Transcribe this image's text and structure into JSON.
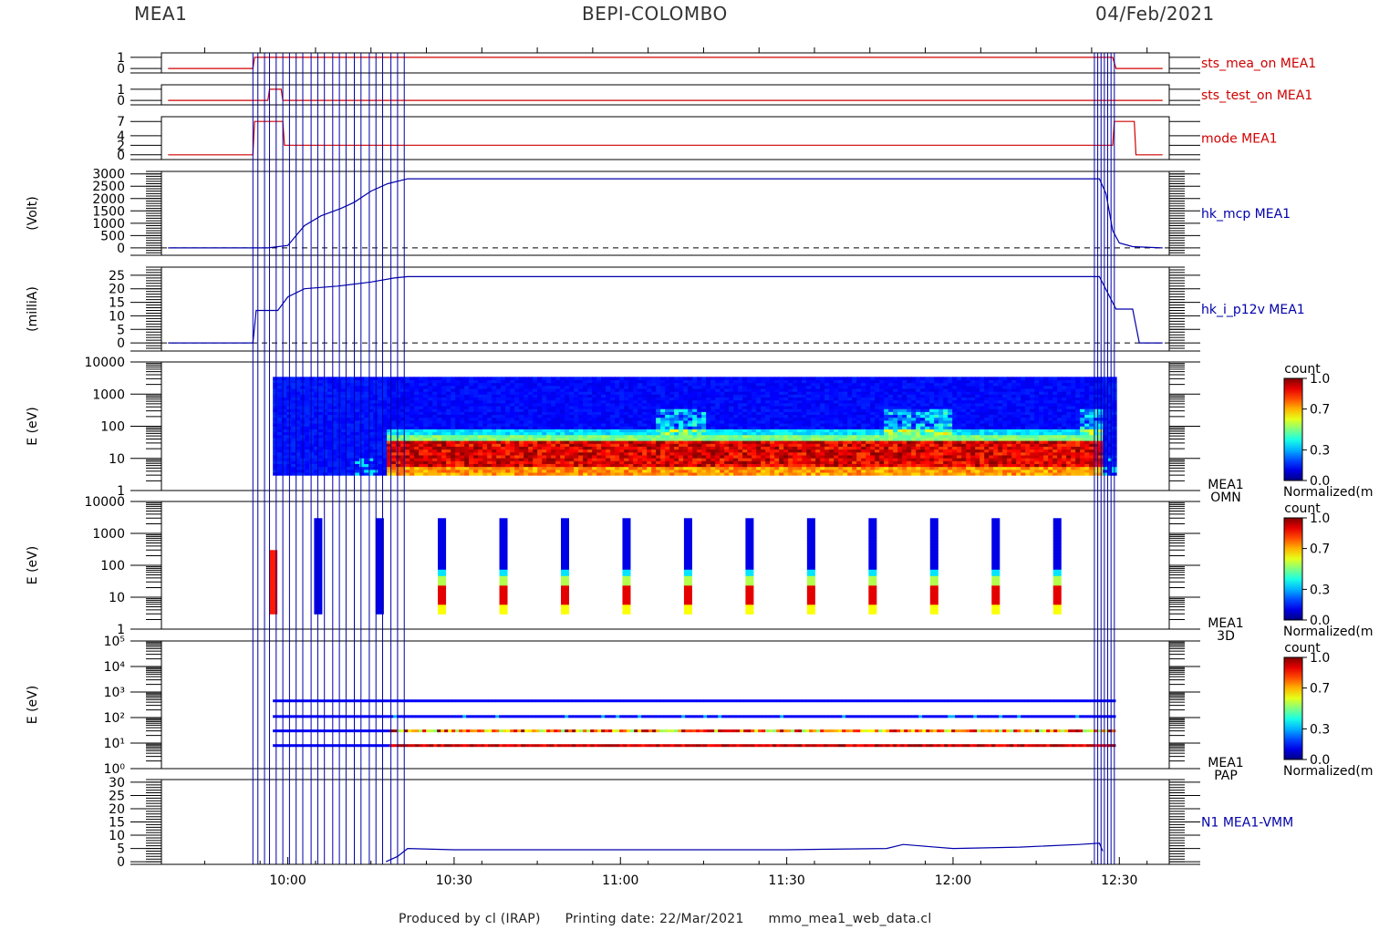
{
  "header": {
    "left": "MEA1",
    "center": "BEPI-COLOMBO",
    "right": "04/Feb/2021"
  },
  "footer": {
    "produced": "Produced by cl (IRAP)",
    "printing": "Printing date: 22/Mar/2021",
    "file": "mmo_mea1_web_data.cl"
  },
  "colors": {
    "red": "#d00000",
    "blue": "#0000aa",
    "frame": "#000000"
  },
  "chart_data": {
    "type": "table",
    "time_axis": {
      "ticks": [
        "10:00",
        "10:30",
        "11:00",
        "11:30",
        "12:00",
        "12:30"
      ],
      "range_hours": [
        9.62,
        12.65
      ]
    },
    "event_lines_hours": [
      9.895,
      9.91,
      9.93,
      9.945,
      9.965,
      9.985,
      10.005,
      10.025,
      10.045,
      10.07,
      10.09,
      10.11,
      10.135,
      10.155,
      10.175,
      10.2,
      10.22,
      10.245,
      10.265,
      10.285,
      10.31,
      10.33,
      10.35,
      12.425,
      12.435,
      12.445,
      12.455,
      12.465,
      12.475,
      12.485
    ],
    "panels": [
      {
        "kind": "line",
        "label": "sts_mea_on MEA1",
        "color": "#d00000",
        "ylim": [
          -0.4,
          1.4
        ],
        "yticks": [
          0,
          1
        ],
        "ytick_labels": [
          "0",
          "1"
        ],
        "x": [
          9.64,
          9.895,
          9.9,
          9.93,
          9.94,
          12.48,
          12.49,
          12.63
        ],
        "y": [
          0,
          0,
          1,
          1,
          1,
          1,
          0,
          0
        ]
      },
      {
        "kind": "line",
        "label": "sts_test_on MEA1",
        "color": "#d00000",
        "ylim": [
          -0.4,
          1.4
        ],
        "yticks": [
          0,
          1
        ],
        "ytick_labels": [
          "0",
          "1"
        ],
        "x": [
          9.64,
          9.94,
          9.945,
          9.98,
          9.985,
          12.63
        ],
        "y": [
          0,
          0,
          1,
          1,
          0,
          0
        ]
      },
      {
        "kind": "line",
        "label": "mode MEA1",
        "color": "#d00000",
        "ylim": [
          -1,
          8
        ],
        "yticks": [
          0,
          2,
          4,
          7
        ],
        "ytick_labels": [
          "0",
          "2",
          "4",
          "7"
        ],
        "x": [
          9.64,
          9.895,
          9.9,
          9.985,
          9.99,
          12.48,
          12.485,
          12.545,
          12.55,
          12.63
        ],
        "y": [
          0,
          0,
          7,
          7,
          2,
          2,
          7,
          7,
          0,
          0
        ]
      },
      {
        "kind": "line",
        "label": "hk_mcp MEA1",
        "color": "#0000aa",
        "unit": "(Volt)",
        "ylim": [
          -300,
          3100
        ],
        "yticks": [
          0,
          500,
          1000,
          1500,
          2000,
          2500,
          3000
        ],
        "ytick_labels": [
          "0",
          "500",
          "1000",
          "1500",
          "2000",
          "2500",
          "3000"
        ],
        "zero_dashed": true,
        "x": [
          9.64,
          9.895,
          9.94,
          10.0,
          10.05,
          10.1,
          10.16,
          10.2,
          10.25,
          10.3,
          10.36,
          12.44,
          12.46,
          12.48,
          12.5,
          12.54,
          12.63
        ],
        "y": [
          0,
          0,
          0,
          100,
          900,
          1300,
          1600,
          1850,
          2300,
          2600,
          2800,
          2800,
          2200,
          700,
          200,
          50,
          0
        ]
      },
      {
        "kind": "line",
        "label": "hk_i_p12v MEA1",
        "color": "#0000aa",
        "unit": "(milliA)",
        "ylim": [
          -3,
          28
        ],
        "yticks": [
          0,
          5,
          10,
          15,
          20,
          25
        ],
        "ytick_labels": [
          "0",
          "5",
          "10",
          "15",
          "20",
          "25"
        ],
        "zero_dashed": true,
        "x": [
          9.64,
          9.895,
          9.905,
          9.97,
          10.0,
          10.05,
          10.15,
          10.25,
          10.32,
          10.36,
          11.0,
          11.5,
          12.0,
          12.44,
          12.49,
          12.54,
          12.56,
          12.63
        ],
        "y": [
          0,
          0,
          12,
          12,
          17,
          20,
          21,
          22.5,
          24,
          24.5,
          24.5,
          24.5,
          24.5,
          24.5,
          12.5,
          12.5,
          0,
          0
        ]
      },
      {
        "kind": "spectrogram",
        "label": [
          "MEA1",
          "OMN"
        ],
        "unit": "E (eV)",
        "ylog": [
          0,
          4
        ],
        "ytick_labels": [
          "1",
          "10",
          "100",
          "1000",
          "10000"
        ],
        "colorbar": {
          "title": "count",
          "ticks": [
            "0.0",
            "0.3",
            "0.7",
            "1.0"
          ],
          "caption": "Normalized(m"
        }
      },
      {
        "kind": "spectrogram",
        "label": [
          "MEA1",
          "3D"
        ],
        "unit": "E (eV)",
        "ylog": [
          0,
          4
        ],
        "ytick_labels": [
          "1",
          "10",
          "100",
          "1000",
          "10000"
        ],
        "burst_times_hours": [
          9.955,
          10.09,
          10.275,
          10.462,
          10.647,
          10.832,
          11.017,
          11.202,
          11.387,
          11.572,
          11.757,
          11.942,
          12.127,
          12.312
        ],
        "colorbar": {
          "title": "count",
          "ticks": [
            "0.0",
            "0.3",
            "0.7",
            "1.0"
          ],
          "caption": "Normalized(m"
        }
      },
      {
        "kind": "spectrogram",
        "label": [
          "MEA1",
          "PAP"
        ],
        "unit": "E (eV)",
        "ylog": [
          0,
          5
        ],
        "ytick_labels": [
          "10⁰",
          "10¹",
          "10²",
          "10³",
          "10⁴",
          "10⁵"
        ],
        "band_energies_ev": [
          450,
          110,
          30,
          8
        ],
        "colorbar": {
          "title": "count",
          "ticks": [
            "0.0",
            "0.3",
            "0.7",
            "1.0"
          ],
          "caption": "Normalized(m"
        }
      },
      {
        "kind": "line",
        "label": "N1 MEA1-VMM",
        "color": "#0000aa",
        "ylim": [
          -1,
          31
        ],
        "yticks": [
          0,
          5,
          10,
          15,
          20,
          25,
          30
        ],
        "ytick_labels": [
          "0",
          "5",
          "10",
          "15",
          "20",
          "25",
          "30"
        ],
        "x": [
          10.295,
          10.33,
          10.36,
          10.5,
          11.0,
          11.5,
          11.8,
          11.85,
          11.9,
          12.0,
          12.2,
          12.38,
          12.44,
          12.45
        ],
        "y": [
          0,
          2,
          5,
          4.5,
          4.5,
          4.5,
          5,
          6.5,
          6,
          5,
          5.5,
          6.5,
          7,
          4
        ]
      }
    ]
  }
}
